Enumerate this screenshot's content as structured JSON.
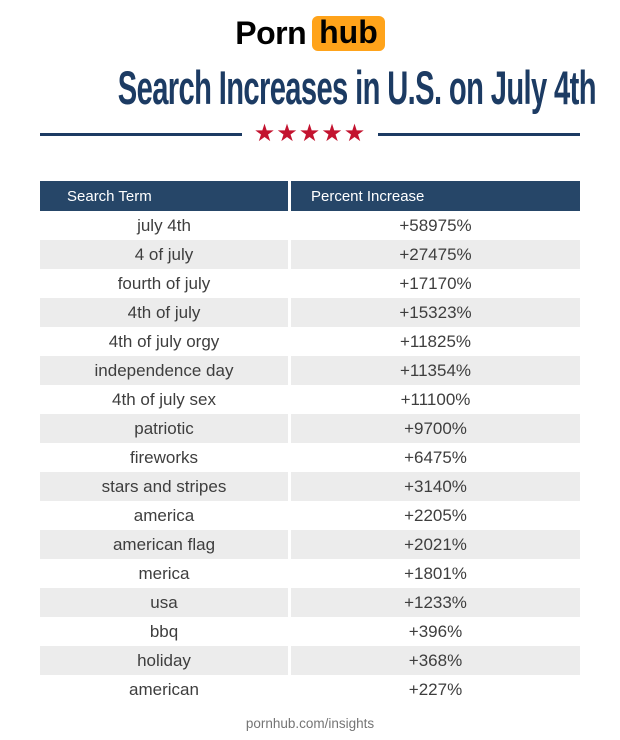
{
  "brand": {
    "logo_text_1": "Porn",
    "logo_text_2": "hub"
  },
  "title": "Search Increases in U.S. on July 4th",
  "divider": {
    "stars": "★★★★★"
  },
  "table": {
    "col_term": "Search Term",
    "col_increase": "Percent Increase",
    "rows": [
      {
        "term": "july 4th",
        "increase": "+58975%"
      },
      {
        "term": "4 of july",
        "increase": "+27475%"
      },
      {
        "term": "fourth of july",
        "increase": "+17170%"
      },
      {
        "term": "4th of july",
        "increase": "+15323%"
      },
      {
        "term": "4th of july orgy",
        "increase": "+11825%"
      },
      {
        "term": "independence day",
        "increase": "+11354%"
      },
      {
        "term": "4th of july sex",
        "increase": "+11100%"
      },
      {
        "term": "patriotic",
        "increase": "+9700%"
      },
      {
        "term": "fireworks",
        "increase": "+6475%"
      },
      {
        "term": "stars and stripes",
        "increase": "+3140%"
      },
      {
        "term": "america",
        "increase": "+2205%"
      },
      {
        "term": "american flag",
        "increase": "+2021%"
      },
      {
        "term": "merica",
        "increase": "+1801%"
      },
      {
        "term": "usa",
        "increase": "+1233%"
      },
      {
        "term": "bbq",
        "increase": "+396%"
      },
      {
        "term": "holiday",
        "increase": "+368%"
      },
      {
        "term": "american",
        "increase": "+227%"
      }
    ]
  },
  "footer": {
    "link": "pornhub.com/insights"
  },
  "colors": {
    "navy": "#1c3b63",
    "header_navy": "#264668",
    "star_red": "#c3132f",
    "row_alt": "#ececec",
    "brand_orange": "#ffa31a",
    "cell_text": "#3e3e3e",
    "footer_gray": "#757575"
  },
  "chart_data": {
    "type": "table",
    "title": "Search Increases in U.S. on July 4th",
    "columns": [
      "Search Term",
      "Percent Increase"
    ],
    "rows": [
      [
        "july 4th",
        "+58975%"
      ],
      [
        "4 of july",
        "+27475%"
      ],
      [
        "fourth of july",
        "+17170%"
      ],
      [
        "4th of july",
        "+15323%"
      ],
      [
        "4th of july orgy",
        "+11825%"
      ],
      [
        "independence day",
        "+11354%"
      ],
      [
        "4th of july sex",
        "+11100%"
      ],
      [
        "patriotic",
        "+9700%"
      ],
      [
        "fireworks",
        "+6475%"
      ],
      [
        "stars and stripes",
        "+3140%"
      ],
      [
        "america",
        "+2205%"
      ],
      [
        "american flag",
        "+2021%"
      ],
      [
        "merica",
        "+1801%"
      ],
      [
        "usa",
        "+1233%"
      ],
      [
        "bbq",
        "+396%"
      ],
      [
        "holiday",
        "+368%"
      ],
      [
        "american",
        "+227%"
      ]
    ],
    "values_numeric_percent": [
      58975,
      27475,
      17170,
      15323,
      11825,
      11354,
      11100,
      9700,
      6475,
      3140,
      2205,
      2021,
      1801,
      1233,
      396,
      368,
      227
    ],
    "layout": {
      "header_background": "#264668",
      "alternating_rows": true,
      "source_label": "pornhub.com/insights"
    }
  }
}
